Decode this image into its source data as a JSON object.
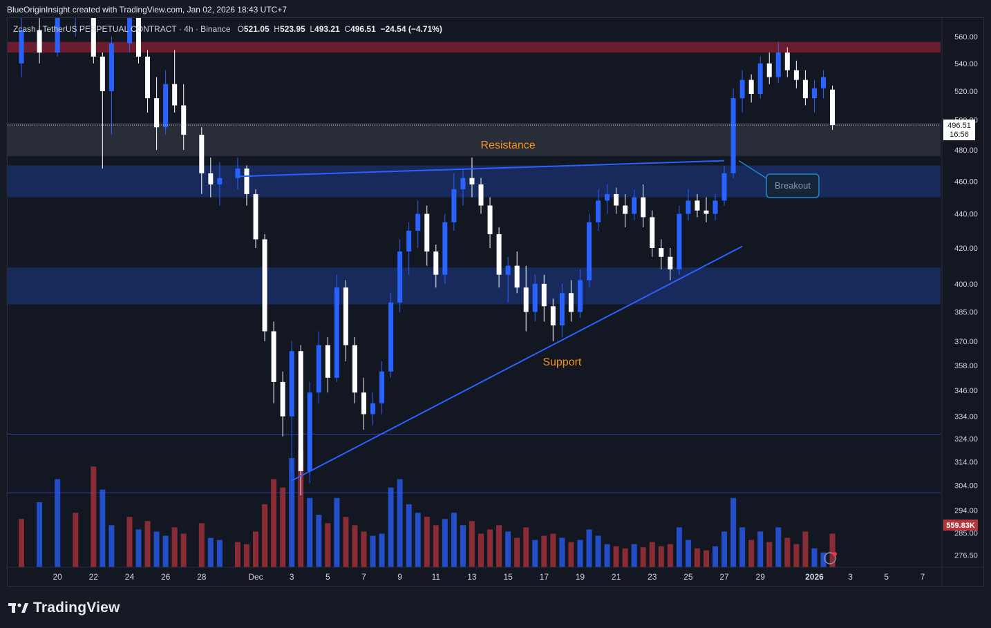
{
  "header": {
    "attribution": "BlueOriginInsight created with TradingView.com, Jan 02, 2026 18:43 UTC+7"
  },
  "symbol": {
    "name": "Zcash / TetherUS PERPETUAL CONTRACT · 4h · Binance",
    "open_label": "O",
    "open": "521.05",
    "high_label": "H",
    "high": "523.95",
    "low_label": "L",
    "low": "493.21",
    "close_label": "C",
    "close": "496.51",
    "change": "−24.54 (−4.71%)"
  },
  "last_price": {
    "value": "496.51",
    "countdown": "16:56"
  },
  "volume_tag": {
    "value": "559.83K"
  },
  "footer": {
    "brand": "TradingView"
  },
  "colors": {
    "up": "#2962ff",
    "down": "#ffffff",
    "vol_up": "#2962ff",
    "vol_down": "#b2343c",
    "zone_blue": "#1e3a8a",
    "zone_red": "#7a1e2e",
    "zone_gray": "#3a3f4b",
    "trendline": "#2962ff",
    "annotation_text": "#f7931a"
  },
  "chart_data": {
    "type": "candlestick",
    "timeframe": "4h",
    "ylim": [
      272,
      568
    ],
    "y_scale": "log",
    "y_ticks": [
      560.0,
      540.0,
      520.0,
      500.0,
      480.0,
      460.0,
      440.0,
      420.0,
      400.0,
      385.0,
      370.0,
      358.0,
      346.0,
      334.0,
      324.0,
      314.0,
      304.0,
      294.0,
      285.0,
      276.5
    ],
    "x_ticks": [
      "20",
      "22",
      "24",
      "26",
      "28",
      "Dec",
      "3",
      "5",
      "7",
      "9",
      "11",
      "13",
      "15",
      "17",
      "19",
      "21",
      "23",
      "25",
      "27",
      "29",
      "2026",
      "3",
      "5",
      "7"
    ],
    "x_range_days": [
      "2025-11-18",
      "2026-01-08"
    ],
    "zones": [
      {
        "name": "resistance-zone-top",
        "from": 548,
        "to": 556,
        "color": "red"
      },
      {
        "name": "gray-zone",
        "from": 476,
        "to": 498,
        "color": "gray"
      },
      {
        "name": "blue-zone-upper",
        "from": 450,
        "to": 470,
        "color": "blue"
      },
      {
        "name": "blue-zone-lower",
        "from": 389,
        "to": 409,
        "color": "blue"
      }
    ],
    "horizontal_lines": [
      326,
      301
    ],
    "trendlines": [
      {
        "name": "resistance-line",
        "from": [
          "2025-11-30",
          463
        ],
        "to": [
          "2025-12-27",
          473
        ]
      },
      {
        "name": "support-line",
        "from": [
          "2025-12-03",
          306
        ],
        "to": [
          "2025-12-28",
          421
        ]
      }
    ],
    "annotations": [
      {
        "text": "Resistance",
        "at": [
          "2025-12-15",
          481
        ]
      },
      {
        "text": "Support",
        "at": [
          "2025-12-18",
          358
        ]
      },
      {
        "text": "Breakout"
      }
    ],
    "ohlc": [
      [
        "2025-11-18",
        540,
        575,
        530,
        565
      ],
      [
        "2025-11-19",
        565,
        580,
        540,
        548
      ],
      [
        "2025-11-20",
        548,
        590,
        545,
        580
      ],
      [
        "2025-11-21",
        580,
        600,
        560,
        590
      ],
      [
        "2025-11-22",
        590,
        595,
        540,
        545
      ],
      [
        "2025-11-22.5",
        545,
        548,
        468,
        520
      ],
      [
        "2025-11-23",
        520,
        560,
        490,
        555
      ],
      [
        "2025-11-24",
        555,
        590,
        548,
        585
      ],
      [
        "2025-11-24.5",
        585,
        590,
        540,
        545
      ],
      [
        "2025-11-25",
        545,
        550,
        505,
        515
      ],
      [
        "2025-11-25.5",
        515,
        530,
        480,
        495
      ],
      [
        "2025-11-26",
        495,
        535,
        490,
        525
      ],
      [
        "2025-11-26.5",
        525,
        550,
        505,
        510
      ],
      [
        "2025-11-27",
        510,
        525,
        480,
        490
      ],
      [
        "2025-11-28",
        490,
        495,
        452,
        465
      ],
      [
        "2025-11-28.5",
        465,
        475,
        450,
        458
      ],
      [
        "2025-11-29",
        458,
        472,
        445,
        462
      ],
      [
        "2025-11-30",
        462,
        475,
        455,
        468
      ],
      [
        "2025-11-30.5",
        468,
        470,
        445,
        452
      ],
      [
        "2025-12-01",
        452,
        455,
        420,
        425
      ],
      [
        "2025-12-01.5",
        425,
        428,
        370,
        375
      ],
      [
        "2025-12-02",
        375,
        380,
        340,
        350
      ],
      [
        "2025-12-02.5",
        350,
        355,
        325,
        334
      ],
      [
        "2025-12-03",
        334,
        370,
        310,
        365
      ],
      [
        "2025-12-03.5",
        365,
        368,
        300,
        310
      ],
      [
        "2025-12-04",
        310,
        350,
        305,
        345
      ],
      [
        "2025-12-04.5",
        345,
        375,
        340,
        368
      ],
      [
        "2025-12-05",
        368,
        372,
        345,
        352
      ],
      [
        "2025-12-05.5",
        352,
        405,
        350,
        398
      ],
      [
        "2025-12-06",
        398,
        402,
        360,
        368
      ],
      [
        "2025-12-06.5",
        368,
        372,
        340,
        345
      ],
      [
        "2025-12-07",
        345,
        352,
        328,
        335
      ],
      [
        "2025-12-07.5",
        335,
        345,
        330,
        340
      ],
      [
        "2025-12-08",
        340,
        360,
        335,
        355
      ],
      [
        "2025-12-08.5",
        355,
        395,
        352,
        390
      ],
      [
        "2025-12-09",
        390,
        425,
        385,
        418
      ],
      [
        "2025-12-09.5",
        418,
        435,
        405,
        430
      ],
      [
        "2025-12-10",
        430,
        448,
        420,
        440
      ],
      [
        "2025-12-10.5",
        440,
        445,
        410,
        418
      ],
      [
        "2025-12-11",
        418,
        422,
        398,
        405
      ],
      [
        "2025-12-11.5",
        405,
        440,
        400,
        435
      ],
      [
        "2025-12-12",
        435,
        465,
        430,
        455
      ],
      [
        "2025-12-12.5",
        455,
        468,
        445,
        462
      ],
      [
        "2025-12-13",
        462,
        475,
        450,
        458
      ],
      [
        "2025-12-13.5",
        458,
        462,
        440,
        445
      ],
      [
        "2025-12-14",
        445,
        450,
        420,
        428
      ],
      [
        "2025-12-14.5",
        428,
        432,
        398,
        405
      ],
      [
        "2025-12-15",
        405,
        415,
        390,
        410
      ],
      [
        "2025-12-15.5",
        410,
        418,
        395,
        398
      ],
      [
        "2025-12-16",
        398,
        410,
        375,
        385
      ],
      [
        "2025-12-16.5",
        385,
        405,
        380,
        400
      ],
      [
        "2025-12-17",
        400,
        405,
        380,
        388
      ],
      [
        "2025-12-17.5",
        388,
        392,
        370,
        378
      ],
      [
        "2025-12-18",
        378,
        400,
        372,
        395
      ],
      [
        "2025-12-18.5",
        395,
        402,
        380,
        385
      ],
      [
        "2025-12-19",
        385,
        408,
        382,
        402
      ],
      [
        "2025-12-19.5",
        402,
        440,
        398,
        435
      ],
      [
        "2025-12-20",
        435,
        455,
        430,
        448
      ],
      [
        "2025-12-20.5",
        448,
        458,
        440,
        452
      ],
      [
        "2025-12-21",
        452,
        456,
        440,
        445
      ],
      [
        "2025-12-21.5",
        445,
        452,
        432,
        440
      ],
      [
        "2025-12-22",
        440,
        455,
        436,
        450
      ],
      [
        "2025-12-22.5",
        450,
        458,
        432,
        438
      ],
      [
        "2025-12-23",
        438,
        442,
        415,
        420
      ],
      [
        "2025-12-23.5",
        420,
        425,
        408,
        415
      ],
      [
        "2025-12-24",
        415,
        420,
        402,
        408
      ],
      [
        "2025-12-24.5",
        408,
        445,
        405,
        440
      ],
      [
        "2025-12-25",
        440,
        455,
        436,
        448
      ],
      [
        "2025-12-25.5",
        448,
        452,
        438,
        442
      ],
      [
        "2025-12-26",
        442,
        450,
        435,
        440
      ],
      [
        "2025-12-26.5",
        440,
        452,
        436,
        448
      ],
      [
        "2025-12-27",
        448,
        470,
        445,
        465
      ],
      [
        "2025-12-27.5",
        465,
        522,
        462,
        515
      ],
      [
        "2025-12-28",
        515,
        535,
        505,
        528
      ],
      [
        "2025-12-28.5",
        528,
        532,
        512,
        518
      ],
      [
        "2025-12-29",
        518,
        545,
        515,
        540
      ],
      [
        "2025-12-29.5",
        540,
        548,
        525,
        530
      ],
      [
        "2025-12-30",
        530,
        556,
        526,
        548
      ],
      [
        "2025-12-30.5",
        548,
        552,
        530,
        535
      ],
      [
        "2025-12-31",
        535,
        542,
        522,
        528
      ],
      [
        "2025-12-31.5",
        528,
        535,
        510,
        515
      ],
      [
        "2026-01-01",
        515,
        528,
        505,
        522
      ],
      [
        "2026-01-01.5",
        522,
        535,
        515,
        530
      ],
      [
        "2026-01-02",
        521.05,
        523.95,
        493.21,
        496.51
      ]
    ],
    "volume": [
      [
        "2025-11-18",
        230,
        "d"
      ],
      [
        "2025-11-19",
        310,
        "u"
      ],
      [
        "2025-11-20",
        420,
        "u"
      ],
      [
        "2025-11-21",
        260,
        "d"
      ],
      [
        "2025-11-22",
        480,
        "d"
      ],
      [
        "2025-11-22.5",
        370,
        "u"
      ],
      [
        "2025-11-23",
        200,
        "u"
      ],
      [
        "2025-11-24",
        240,
        "d"
      ],
      [
        "2025-11-24.5",
        180,
        "u"
      ],
      [
        "2025-11-25",
        220,
        "d"
      ],
      [
        "2025-11-25.5",
        170,
        "u"
      ],
      [
        "2025-11-26",
        150,
        "u"
      ],
      [
        "2025-11-26.5",
        190,
        "d"
      ],
      [
        "2025-11-27",
        160,
        "d"
      ],
      [
        "2025-11-28",
        210,
        "d"
      ],
      [
        "2025-11-28.5",
        140,
        "u"
      ],
      [
        "2025-11-29",
        130,
        "u"
      ],
      [
        "2025-11-30",
        120,
        "d"
      ],
      [
        "2025-11-30.5",
        110,
        "d"
      ],
      [
        "2025-12-01",
        170,
        "d"
      ],
      [
        "2025-12-01.5",
        300,
        "d"
      ],
      [
        "2025-12-02",
        420,
        "d"
      ],
      [
        "2025-12-02.5",
        380,
        "d"
      ],
      [
        "2025-12-03",
        520,
        "u"
      ],
      [
        "2025-12-03.5",
        560,
        "d"
      ],
      [
        "2025-12-04",
        330,
        "u"
      ],
      [
        "2025-12-04.5",
        250,
        "u"
      ],
      [
        "2025-12-05",
        210,
        "d"
      ],
      [
        "2025-12-05.5",
        330,
        "u"
      ],
      [
        "2025-12-06",
        240,
        "d"
      ],
      [
        "2025-12-06.5",
        200,
        "d"
      ],
      [
        "2025-12-07",
        170,
        "d"
      ],
      [
        "2025-12-07.5",
        150,
        "u"
      ],
      [
        "2025-12-08",
        160,
        "u"
      ],
      [
        "2025-12-08.5",
        380,
        "u"
      ],
      [
        "2025-12-09",
        420,
        "u"
      ],
      [
        "2025-12-09.5",
        300,
        "u"
      ],
      [
        "2025-12-10",
        260,
        "u"
      ],
      [
        "2025-12-10.5",
        240,
        "d"
      ],
      [
        "2025-12-11",
        200,
        "d"
      ],
      [
        "2025-12-11.5",
        230,
        "u"
      ],
      [
        "2025-12-12",
        260,
        "u"
      ],
      [
        "2025-12-12.5",
        200,
        "u"
      ],
      [
        "2025-12-13",
        220,
        "d"
      ],
      [
        "2025-12-13.5",
        160,
        "d"
      ],
      [
        "2025-12-14",
        180,
        "d"
      ],
      [
        "2025-12-14.5",
        200,
        "d"
      ],
      [
        "2025-12-15",
        170,
        "u"
      ],
      [
        "2025-12-15.5",
        140,
        "d"
      ],
      [
        "2025-12-16",
        190,
        "d"
      ],
      [
        "2025-12-16.5",
        130,
        "u"
      ],
      [
        "2025-12-17",
        150,
        "d"
      ],
      [
        "2025-12-17.5",
        160,
        "d"
      ],
      [
        "2025-12-18",
        140,
        "u"
      ],
      [
        "2025-12-18.5",
        120,
        "d"
      ],
      [
        "2025-12-19",
        130,
        "u"
      ],
      [
        "2025-12-19.5",
        180,
        "u"
      ],
      [
        "2025-12-20",
        150,
        "u"
      ],
      [
        "2025-12-20.5",
        110,
        "u"
      ],
      [
        "2025-12-21",
        100,
        "d"
      ],
      [
        "2025-12-21.5",
        90,
        "d"
      ],
      [
        "2025-12-22",
        110,
        "u"
      ],
      [
        "2025-12-22.5",
        95,
        "d"
      ],
      [
        "2025-12-23",
        120,
        "d"
      ],
      [
        "2025-12-23.5",
        100,
        "d"
      ],
      [
        "2025-12-24",
        110,
        "d"
      ],
      [
        "2025-12-24.5",
        190,
        "u"
      ],
      [
        "2025-12-25",
        130,
        "u"
      ],
      [
        "2025-12-25.5",
        90,
        "d"
      ],
      [
        "2025-12-26",
        80,
        "d"
      ],
      [
        "2025-12-26.5",
        100,
        "u"
      ],
      [
        "2025-12-27",
        170,
        "u"
      ],
      [
        "2025-12-27.5",
        330,
        "u"
      ],
      [
        "2025-12-28",
        190,
        "u"
      ],
      [
        "2025-12-28.5",
        130,
        "d"
      ],
      [
        "2025-12-29",
        170,
        "u"
      ],
      [
        "2025-12-29.5",
        120,
        "d"
      ],
      [
        "2025-12-30",
        190,
        "u"
      ],
      [
        "2025-12-30.5",
        140,
        "d"
      ],
      [
        "2025-12-31",
        110,
        "d"
      ],
      [
        "2025-12-31.5",
        170,
        "d"
      ],
      [
        "2026-01-01",
        90,
        "u"
      ],
      [
        "2026-01-01.5",
        70,
        "u"
      ],
      [
        "2026-01-02",
        160,
        "d"
      ]
    ]
  }
}
